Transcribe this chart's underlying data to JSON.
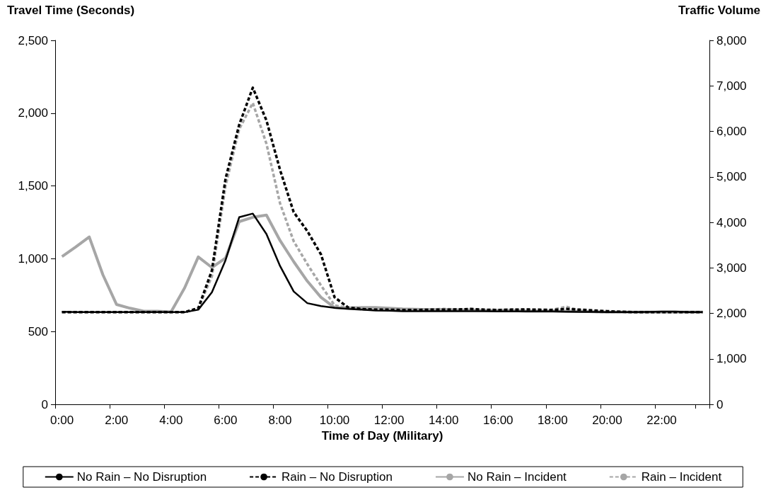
{
  "chart_data": {
    "type": "line",
    "ylabel": "Travel Time (Seconds)",
    "y2label": "Traffic Volume",
    "xlabel": "Time of Day (Military)",
    "categories": [
      "0:00",
      null,
      null,
      null,
      "2:00",
      null,
      null,
      null,
      "4:00",
      null,
      null,
      null,
      "6:00",
      null,
      null,
      null,
      "8:00",
      null,
      null,
      null,
      "10:00",
      null,
      null,
      null,
      "12:00",
      null,
      null,
      null,
      "14:00",
      null,
      null,
      null,
      "16:00",
      null,
      null,
      null,
      "18:00",
      null,
      null,
      null,
      "20:00",
      null,
      null,
      null,
      "22:00",
      null,
      null,
      null
    ],
    "series": [
      {
        "name": "No Rain – No Disruption",
        "color": "#000000",
        "line_style": "solid",
        "values": [
          636,
          634,
          633,
          633,
          633,
          633,
          633,
          633,
          633,
          633,
          650,
          770,
          990,
          1285,
          1310,
          1170,
          950,
          775,
          695,
          675,
          663,
          655,
          650,
          645,
          643,
          640,
          640,
          640,
          640,
          640,
          640,
          640,
          638,
          638,
          638,
          638,
          638,
          636,
          635,
          635,
          633,
          633,
          633,
          635,
          637,
          637,
          633,
          633
        ]
      },
      {
        "name": "Rain – No Disruption",
        "color": "#000000",
        "line_style": "dashed",
        "values": [
          633,
          633,
          633,
          633,
          633,
          633,
          633,
          633,
          633,
          633,
          660,
          920,
          1550,
          1920,
          2175,
          1950,
          1610,
          1320,
          1190,
          1030,
          735,
          665,
          655,
          650,
          650,
          648,
          648,
          650,
          650,
          652,
          655,
          650,
          648,
          650,
          652,
          650,
          648,
          655,
          650,
          645,
          640,
          636,
          633,
          633,
          633,
          633,
          633,
          633
        ]
      },
      {
        "name": "No Rain – Incident",
        "color": "#a6a6a6",
        "line_style": "solid",
        "values": [
          1015,
          1080,
          1150,
          890,
          686,
          660,
          640,
          640,
          635,
          800,
          1012,
          940,
          1005,
          1255,
          1285,
          1300,
          1125,
          980,
          846,
          735,
          665,
          662,
          665,
          665,
          660,
          655,
          653,
          650,
          650,
          648,
          648,
          645,
          645,
          645,
          640,
          640,
          640,
          640,
          640,
          636,
          633,
          633,
          633,
          633,
          633,
          633,
          633,
          633
        ]
      },
      {
        "name": "Rain – Incident",
        "color": "#a6a6a6",
        "line_style": "dashed",
        "values": [
          633,
          633,
          633,
          633,
          633,
          633,
          633,
          633,
          633,
          633,
          660,
          880,
          1500,
          1890,
          2070,
          1790,
          1380,
          1120,
          963,
          817,
          680,
          660,
          660,
          658,
          655,
          652,
          650,
          652,
          655,
          652,
          648,
          645,
          648,
          652,
          648,
          645,
          650,
          670,
          645,
          636,
          633,
          633,
          633,
          633,
          633,
          633,
          633,
          633
        ]
      }
    ],
    "ylim": [
      0,
      2500
    ],
    "yticks": [
      {
        "value": 0,
        "label": "0"
      },
      {
        "value": 500,
        "label": "500"
      },
      {
        "value": 1000,
        "label": "1,000"
      },
      {
        "value": 1500,
        "label": "1,500"
      },
      {
        "value": 2000,
        "label": "2,000"
      },
      {
        "value": 2500,
        "label": "2,500"
      }
    ],
    "y2lim": [
      0,
      8000
    ],
    "y2ticks": [
      {
        "value": 0,
        "label": "0"
      },
      {
        "value": 1000,
        "label": "1,000"
      },
      {
        "value": 2000,
        "label": "2,000"
      },
      {
        "value": 3000,
        "label": "3,000"
      },
      {
        "value": 4000,
        "label": "4,000"
      },
      {
        "value": 5000,
        "label": "5,000"
      },
      {
        "value": 6000,
        "label": "6,000"
      },
      {
        "value": 7000,
        "label": "7,000"
      },
      {
        "value": 8000,
        "label": "8,000"
      }
    ],
    "grid": false,
    "legend": "bottom",
    "marker": "none"
  }
}
